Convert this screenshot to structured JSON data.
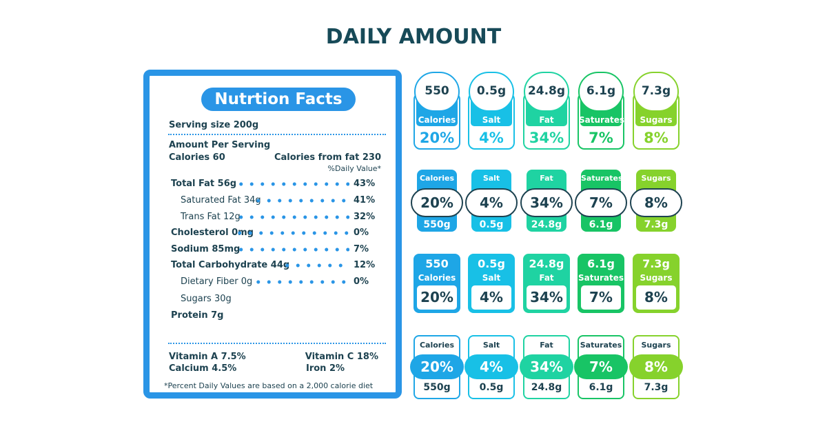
{
  "title": "DAILY AMOUNT",
  "colors": {
    "primary_blue": "#2a95e6",
    "dark_text": "#1d4250"
  },
  "label": {
    "heading": "Nutrtion Facts",
    "serving_size": "Serving size 200g",
    "amount_per_serving": "Amount Per Serving",
    "calories": "Calories 60",
    "calories_from_fat": "Calories from fat 230",
    "daily_value": "%Daily Value*",
    "rows": [
      {
        "name": "Total Fat 56g",
        "pct": "43%",
        "bold": true,
        "indent": false,
        "dots": true
      },
      {
        "name": "Saturated Fat 34g",
        "pct": "41%",
        "bold": false,
        "indent": true,
        "dots": true
      },
      {
        "name": "Trans Fat 12g",
        "pct": "32%",
        "bold": false,
        "indent": true,
        "dots": true
      },
      {
        "name": "Cholesterol 0mg",
        "pct": "0%",
        "bold": true,
        "indent": false,
        "dots": true
      },
      {
        "name": "Sodium 85mg",
        "pct": "7%",
        "bold": true,
        "indent": false,
        "dots": true
      },
      {
        "name": "Total Carbohydrate 44g",
        "pct": "12%",
        "bold": true,
        "indent": false,
        "dots": true
      },
      {
        "name": "Dietary Fiber 0g",
        "pct": "0%",
        "bold": false,
        "indent": true,
        "dots": true
      },
      {
        "name": "Sugars 30g",
        "pct": "",
        "bold": false,
        "indent": true,
        "dots": false
      },
      {
        "name": "Protein 7g",
        "pct": "",
        "bold": true,
        "indent": false,
        "dots": false
      }
    ],
    "vitamin_a": "Vitamin A 7.5%",
    "vitamin_c": "Vitamin C 18%",
    "calcium": "Calcium 4.5%",
    "iron": "Iron 2%",
    "footnote": "*Percent Daily Values are based on a 2,000 calorie diet"
  },
  "nutrients": [
    {
      "name": "Calories",
      "amount": "550",
      "amount_alt": "550g",
      "percent": "20%",
      "color": "#1ea6e6"
    },
    {
      "name": "Salt",
      "amount": "0.5g",
      "amount_alt": "0.5g",
      "percent": "4%",
      "color": "#18c0e6"
    },
    {
      "name": "Fat",
      "amount": "24.8g",
      "amount_alt": "24.8g",
      "percent": "34%",
      "color": "#1fd3a2"
    },
    {
      "name": "Saturates",
      "amount": "6.1g",
      "amount_alt": "6.1g",
      "percent": "7%",
      "color": "#18c465"
    },
    {
      "name": "Sugars",
      "amount": "7.3g",
      "amount_alt": "7.3g",
      "percent": "8%",
      "color": "#86d22c"
    }
  ]
}
